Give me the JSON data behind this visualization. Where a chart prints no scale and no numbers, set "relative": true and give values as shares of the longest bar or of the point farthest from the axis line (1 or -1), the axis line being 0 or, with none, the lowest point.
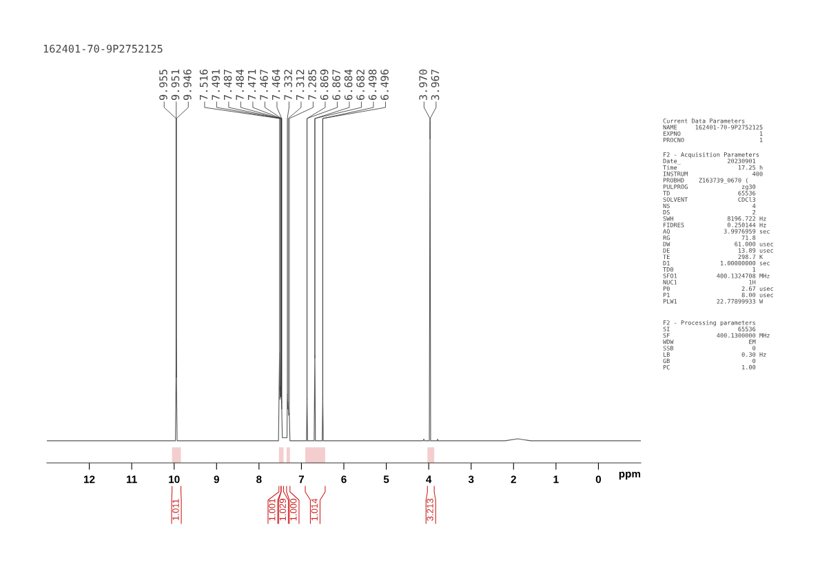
{
  "chart_data": {
    "type": "line",
    "title": "162401-70-9P2752125",
    "xlabel": "ppm",
    "relative": true,
    "marker": "none",
    "line_style": "solid",
    "xlim": [
      13.0,
      -1.0
    ],
    "xticks": [
      12,
      11,
      10,
      9,
      8,
      7,
      6,
      5,
      4,
      3,
      2,
      1,
      0
    ],
    "series": [
      {
        "color": "#555555",
        "x": [
          13.0,
          10.1,
          9.97,
          9.955,
          9.951,
          9.946,
          9.93,
          7.54,
          7.516,
          7.505,
          7.491,
          7.487,
          7.484,
          7.471,
          7.467,
          7.464,
          7.45,
          7.34,
          7.332,
          7.322,
          7.312,
          7.3,
          7.285,
          7.27,
          6.88,
          6.869,
          6.867,
          6.855,
          6.7,
          6.684,
          6.682,
          6.67,
          6.51,
          6.498,
          6.496,
          6.485,
          4.13,
          4.115,
          4.1,
          3.985,
          3.97,
          3.967,
          3.955,
          3.8,
          3.79,
          3.78,
          2.2,
          1.9,
          1.6,
          -1.0
        ],
        "values": [
          0.065,
          0.065,
          0.065,
          0.252,
          0.362,
          0.252,
          0.065,
          0.065,
          0.322,
          0.187,
          0.223,
          0.215,
          0.196,
          0.192,
          0.177,
          0.159,
          0.074,
          0.074,
          0.201,
          0.159,
          0.177,
          0.14,
          0.146,
          0.065,
          0.065,
          0.19,
          0.187,
          0.065,
          0.065,
          0.316,
          0.308,
          0.065,
          0.065,
          0.19,
          0.187,
          0.065,
          0.065,
          0.07,
          0.065,
          0.065,
          0.953,
          1,
          0.065,
          0.065,
          0.07,
          0.065,
          0.065,
          0.071,
          0.065,
          0.065
        ]
      }
    ],
    "bands": [
      {
        "axis": "x",
        "from": 10.05,
        "to": 9.84,
        "label": "1.011",
        "color": "#cc2222"
      },
      {
        "axis": "x",
        "from": 7.53,
        "to": 7.48,
        "label": "1.001",
        "color": "#cc2222"
      },
      {
        "axis": "x",
        "from": 7.48,
        "to": 7.42,
        "label": "1.029",
        "color": "#cc2222"
      },
      {
        "axis": "x",
        "from": 7.35,
        "to": 7.27,
        "label": "1.000",
        "color": "#cc2222"
      },
      {
        "axis": "x",
        "from": 6.91,
        "to": 6.44,
        "label": "1.014",
        "color": "#cc2222"
      },
      {
        "axis": "x",
        "from": 4.03,
        "to": 3.87,
        "label": "3.213",
        "color": "#cc2222"
      }
    ],
    "annotations": [
      {
        "text": "9.955",
        "x": 9.955,
        "y": 0.252
      },
      {
        "text": "9.951",
        "x": 9.951,
        "y": 0.362
      },
      {
        "text": "9.946",
        "x": 9.946,
        "y": 0.252
      },
      {
        "text": "7.516",
        "x": 7.516,
        "y": 0.322
      },
      {
        "text": "7.491",
        "x": 7.491,
        "y": 0.223
      },
      {
        "text": "7.487",
        "x": 7.487,
        "y": 0.215
      },
      {
        "text": "7.484",
        "x": 7.484,
        "y": 0.196
      },
      {
        "text": "7.471",
        "x": 7.471,
        "y": 0.192
      },
      {
        "text": "7.467",
        "x": 7.467,
        "y": 0.177
      },
      {
        "text": "7.464",
        "x": 7.464,
        "y": 0.159
      },
      {
        "text": "7.332",
        "x": 7.332,
        "y": 0.201
      },
      {
        "text": "7.312",
        "x": 7.312,
        "y": 0.177
      },
      {
        "text": "7.285",
        "x": 7.285,
        "y": 0.146
      },
      {
        "text": "6.869",
        "x": 6.869,
        "y": 0.19
      },
      {
        "text": "6.867",
        "x": 6.867,
        "y": 0.187
      },
      {
        "text": "6.684",
        "x": 6.684,
        "y": 0.316
      },
      {
        "text": "6.682",
        "x": 6.682,
        "y": 0.308
      },
      {
        "text": "6.498",
        "x": 6.498,
        "y": 0.19
      },
      {
        "text": "6.496",
        "x": 6.496,
        "y": 0.187
      },
      {
        "text": "3.970",
        "x": 3.97,
        "y": 0.953
      },
      {
        "text": "3.967",
        "x": 3.967,
        "y": 1
      },
      "Current Data Parameters\nNAME     162401-70-9P2752125\nEXPNO                      1\nPROCNO                     1",
      "F2 - Acquisition Parameters\nDate_             20230901\nTime                 17.25 h\nINSTRUM                  400\nPROBHD    Z163739_0670 (\nPULPROG               zg30\nTD                   65536\nSOLVENT              CDCl3\nNS                       4\nDS                       2\nSWH               8196.722 Hz\nFIDRES            0.250144 Hz\nAQ               3.9976959 sec\nRG                    71.8\nDW                  61.000 usec\nDE                   13.89 usec\nTE                   298.7 K\nD1              1.00000000 sec\nTD0                      1\nSFO1           400.1324708 MHz\nNUC1                    1H\nP0                    2.67 usec\nP1                    8.00 usec\nPLW1           22.77899933 W",
      "F2 - Processing parameters\nSI                   65536\nSF             400.1300000 MHz\nWDW                     EM\nSSB                      0\nLB                    0.30 Hz\nGB                       0\nPC                    1.00"
    ]
  }
}
